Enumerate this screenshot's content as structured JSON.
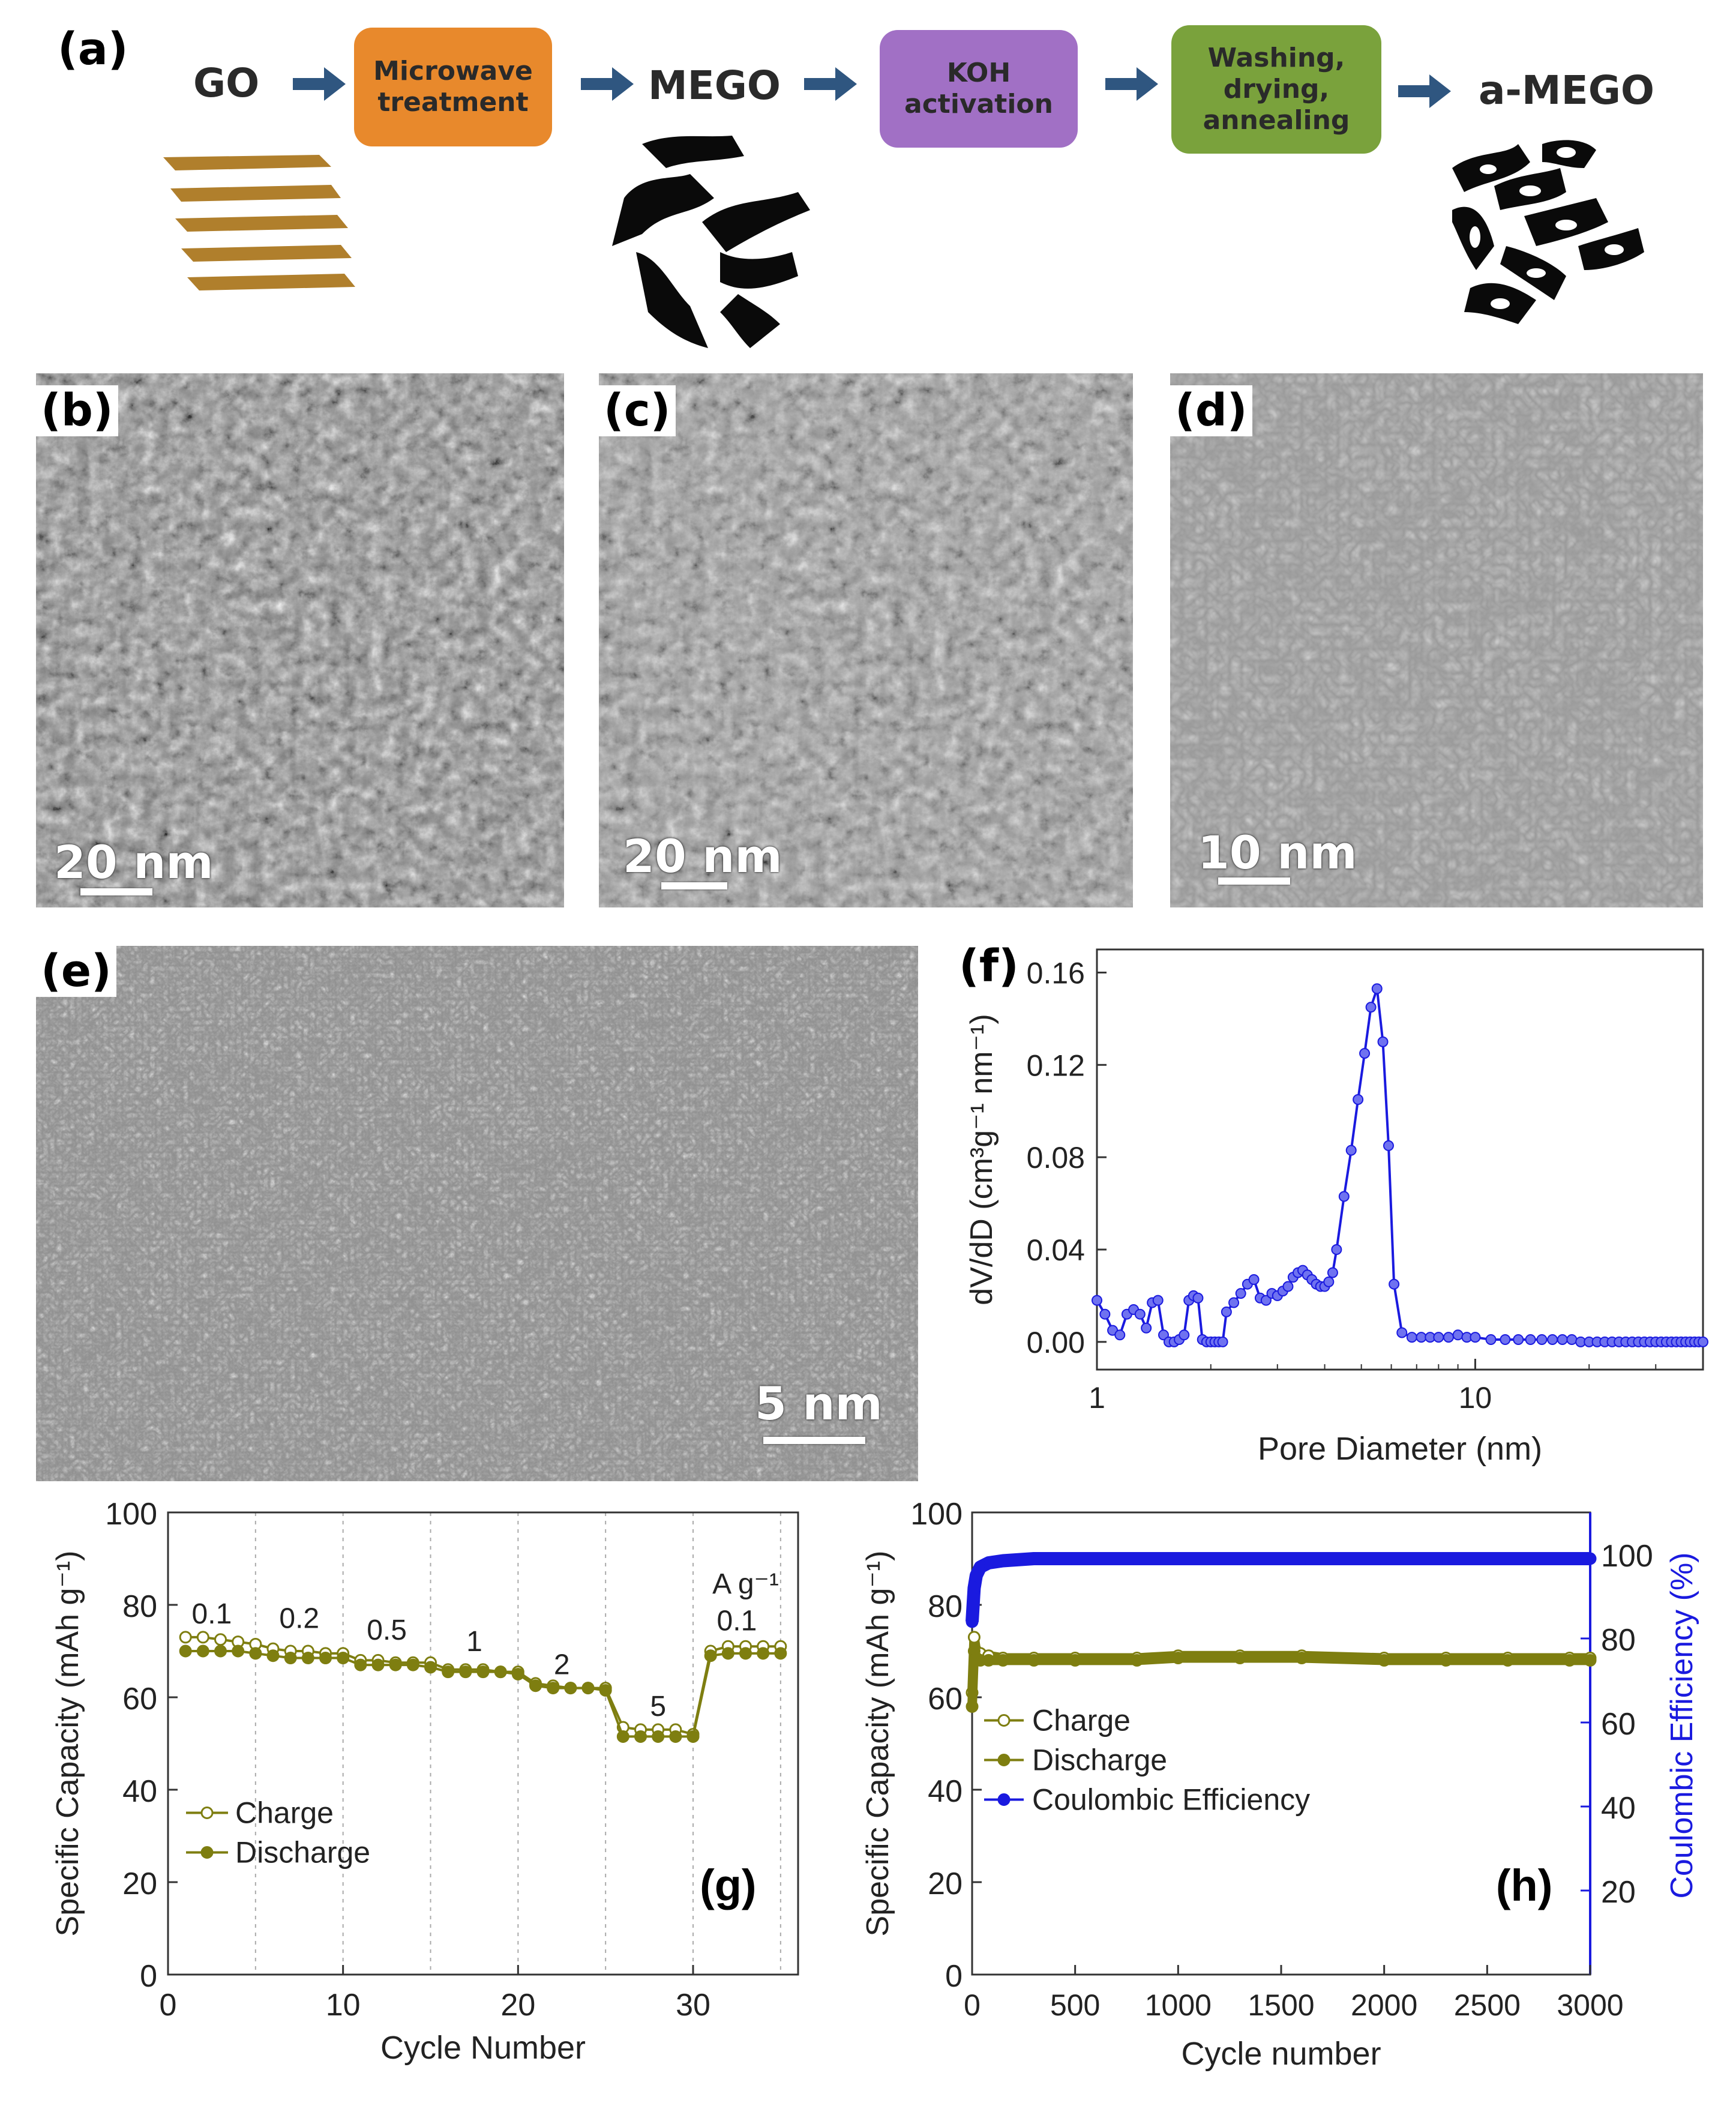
{
  "panel_labels": {
    "a": "(a)",
    "b": "(b)",
    "c": "(c)",
    "d": "(d)",
    "e": "(e)",
    "f": "(f)",
    "g": "(g)",
    "h": "(h)"
  },
  "flow": {
    "go": "GO",
    "step1": [
      "Microwave",
      "treatment"
    ],
    "mego": "MEGO",
    "step2": [
      "KOH",
      "activation"
    ],
    "step3": [
      "Washing,",
      "drying,",
      "annealing"
    ],
    "amego": "a-MEGO",
    "colors": {
      "microwave": "#e8892c",
      "koh": "#a170c5",
      "wash": "#7aa23c",
      "arrow": "#2f5680",
      "go_sheet": "#b07f2c"
    }
  },
  "micrographs": {
    "b": {
      "scale": "20 nm"
    },
    "c": {
      "scale": "20 nm"
    },
    "d": {
      "scale": "10 nm"
    },
    "e": {
      "scale": "5 nm"
    }
  },
  "chart_data": [
    {
      "id": "f",
      "type": "line",
      "xscale": "log",
      "xlabel": "Pore Diameter (nm)",
      "ylabel": "dV/dD (cm³g⁻¹ nm⁻¹)",
      "xlim": [
        1,
        40
      ],
      "ylim": [
        -0.012,
        0.17
      ],
      "xticks": [
        1,
        10
      ],
      "yticks": [
        0.0,
        0.04,
        0.08,
        0.12,
        0.16
      ],
      "color": "#1a1adf",
      "x": [
        1.0,
        1.05,
        1.1,
        1.15,
        1.2,
        1.25,
        1.3,
        1.35,
        1.4,
        1.45,
        1.5,
        1.55,
        1.6,
        1.65,
        1.7,
        1.75,
        1.8,
        1.85,
        1.9,
        1.95,
        2.0,
        2.05,
        2.1,
        2.15,
        2.2,
        2.3,
        2.4,
        2.5,
        2.6,
        2.7,
        2.8,
        2.9,
        3.0,
        3.1,
        3.2,
        3.3,
        3.4,
        3.5,
        3.6,
        3.7,
        3.8,
        3.9,
        4.0,
        4.1,
        4.2,
        4.3,
        4.5,
        4.7,
        4.9,
        5.1,
        5.3,
        5.5,
        5.7,
        5.9,
        6.1,
        6.4,
        6.8,
        7.2,
        7.6,
        8.0,
        8.5,
        9.0,
        9.5,
        10.0,
        11.0,
        12.0,
        13.0,
        14.0,
        15.0,
        16.0,
        17.0,
        18.0,
        19.0,
        20.0,
        21.0,
        22.0,
        23.0,
        24.0,
        25.0,
        26.0,
        27.0,
        28.0,
        29.0,
        30.0,
        31.0,
        32.0,
        33.0,
        34.0,
        35.0,
        36.0,
        37.0,
        38.0,
        39.0,
        40.0
      ],
      "y": [
        0.018,
        0.012,
        0.005,
        0.003,
        0.012,
        0.014,
        0.012,
        0.006,
        0.017,
        0.018,
        0.003,
        0.0,
        0.0,
        0.001,
        0.003,
        0.018,
        0.02,
        0.019,
        0.001,
        0.0,
        0.0,
        0.0,
        0.0,
        0.0,
        0.013,
        0.017,
        0.021,
        0.025,
        0.027,
        0.019,
        0.018,
        0.021,
        0.02,
        0.022,
        0.024,
        0.028,
        0.03,
        0.031,
        0.029,
        0.027,
        0.025,
        0.024,
        0.024,
        0.026,
        0.03,
        0.04,
        0.063,
        0.083,
        0.105,
        0.125,
        0.145,
        0.153,
        0.13,
        0.085,
        0.025,
        0.004,
        0.002,
        0.002,
        0.002,
        0.002,
        0.002,
        0.003,
        0.002,
        0.002,
        0.001,
        0.001,
        0.001,
        0.001,
        0.001,
        0.001,
        0.001,
        0.001,
        0.0,
        0.0,
        0.0,
        0.0,
        0.0,
        0.0,
        0.0,
        0.0,
        0.0,
        0.0,
        0.0,
        0.0,
        0.0,
        0.0,
        0.0,
        0.0,
        0.0,
        0.0,
        0.0,
        0.0,
        0.0,
        0.0
      ]
    },
    {
      "id": "g",
      "type": "line",
      "xlabel": "Cycle Number",
      "ylabel": "Specific Capacity (mAh g⁻¹)",
      "xlim": [
        0,
        36
      ],
      "ylim": [
        0,
        100
      ],
      "xticks": [
        0,
        10,
        20,
        30
      ],
      "yticks": [
        0,
        20,
        40,
        60,
        80,
        100
      ],
      "grid_x": [
        5,
        10,
        15,
        20,
        25,
        30,
        35
      ],
      "color": "#7e7e10",
      "rate_labels": [
        {
          "text": "0.1",
          "x": 2.5,
          "y": 76
        },
        {
          "text": "0.2",
          "x": 7.5,
          "y": 75
        },
        {
          "text": "0.5",
          "x": 12.5,
          "y": 72.5
        },
        {
          "text": "1",
          "x": 17.5,
          "y": 70
        },
        {
          "text": "2",
          "x": 22.5,
          "y": 65
        },
        {
          "text": "5",
          "x": 28,
          "y": 56
        },
        {
          "text": "0.1",
          "x": 32.5,
          "y": 74.5
        }
      ],
      "unit_label": "A g⁻¹",
      "legend": {
        "position": "bottom-left"
      },
      "series": [
        {
          "name": "Charge",
          "marker": "open",
          "x": [
            1,
            2,
            3,
            4,
            5,
            6,
            7,
            8,
            9,
            10,
            11,
            12,
            13,
            14,
            15,
            16,
            17,
            18,
            19,
            20,
            21,
            22,
            23,
            24,
            25,
            26,
            27,
            28,
            29,
            30,
            31,
            32,
            33,
            34,
            35
          ],
          "values": [
            73,
            73,
            72.5,
            72,
            71.5,
            70.5,
            70,
            70,
            69.5,
            69.5,
            68,
            68,
            67.5,
            67.5,
            67.5,
            66,
            66,
            66,
            65.5,
            65.5,
            63,
            62.5,
            62,
            62,
            62,
            53.5,
            53,
            53,
            53,
            52,
            70,
            71,
            71,
            71,
            71
          ]
        },
        {
          "name": "Discharge",
          "marker": "filled",
          "x": [
            1,
            2,
            3,
            4,
            5,
            6,
            7,
            8,
            9,
            10,
            11,
            12,
            13,
            14,
            15,
            16,
            17,
            18,
            19,
            20,
            21,
            22,
            23,
            24,
            25,
            26,
            27,
            28,
            29,
            30,
            31,
            32,
            33,
            34,
            35
          ],
          "values": [
            70,
            70,
            70,
            70,
            69.5,
            69,
            68.5,
            68.5,
            68.5,
            68.5,
            67,
            67,
            67,
            67,
            66.5,
            65.5,
            65.5,
            65.5,
            65.5,
            65,
            62.5,
            62,
            62,
            62,
            61.5,
            51.5,
            51.5,
            51.5,
            51.5,
            51.5,
            69,
            69.5,
            69.5,
            69.5,
            69.5
          ]
        }
      ],
      "tag": "(g)"
    },
    {
      "id": "h",
      "type": "line",
      "xlabel": "Cycle number",
      "ylabel": "Specific Capacity (mAh g⁻¹)",
      "y2label": "Coulombic Efficiency (%)",
      "xlim": [
        0,
        3000
      ],
      "ylim": [
        0,
        100
      ],
      "y2lim": [
        0,
        110
      ],
      "xticks": [
        0,
        500,
        1000,
        1500,
        2000,
        2500,
        3000
      ],
      "yticks": [
        0,
        20,
        40,
        60,
        80,
        100
      ],
      "y2ticks": [
        20,
        40,
        60,
        80,
        100
      ],
      "legend": {
        "position": "middle-left"
      },
      "series": [
        {
          "name": "Charge",
          "color": "#7e7e10",
          "axis": "left",
          "marker": "open",
          "x": [
            0,
            10,
            20,
            40,
            80,
            150,
            300,
            500,
            800,
            1000,
            1300,
            1600,
            2000,
            2300,
            2600,
            2900,
            3000
          ],
          "values": [
            61,
            73,
            70,
            69.5,
            69,
            68.5,
            68.5,
            68.5,
            68.5,
            69,
            69,
            69,
            68.5,
            68.5,
            68.5,
            68.5,
            68.5
          ]
        },
        {
          "name": "Discharge",
          "color": "#7e7e10",
          "axis": "left",
          "marker": "filled",
          "x": [
            0,
            10,
            20,
            40,
            80,
            150,
            300,
            500,
            800,
            1000,
            1300,
            1600,
            2000,
            2300,
            2600,
            2900,
            3000
          ],
          "values": [
            58,
            70,
            68.5,
            68,
            68,
            68,
            68,
            68,
            68,
            68.5,
            68.5,
            68.5,
            68,
            68,
            68,
            68,
            68
          ]
        },
        {
          "name": "Coulombic Efficiency",
          "color": "#1a1adf",
          "axis": "right",
          "marker": "filled",
          "x": [
            0,
            10,
            20,
            40,
            80,
            150,
            300,
            500,
            800,
            1000,
            1300,
            1600,
            2000,
            2300,
            2600,
            2900,
            3000
          ],
          "values": [
            84,
            92,
            95,
            97,
            98,
            98.5,
            99,
            99,
            99,
            99,
            99,
            99,
            99,
            99,
            99,
            99,
            99
          ]
        }
      ],
      "tag": "(h)"
    }
  ]
}
